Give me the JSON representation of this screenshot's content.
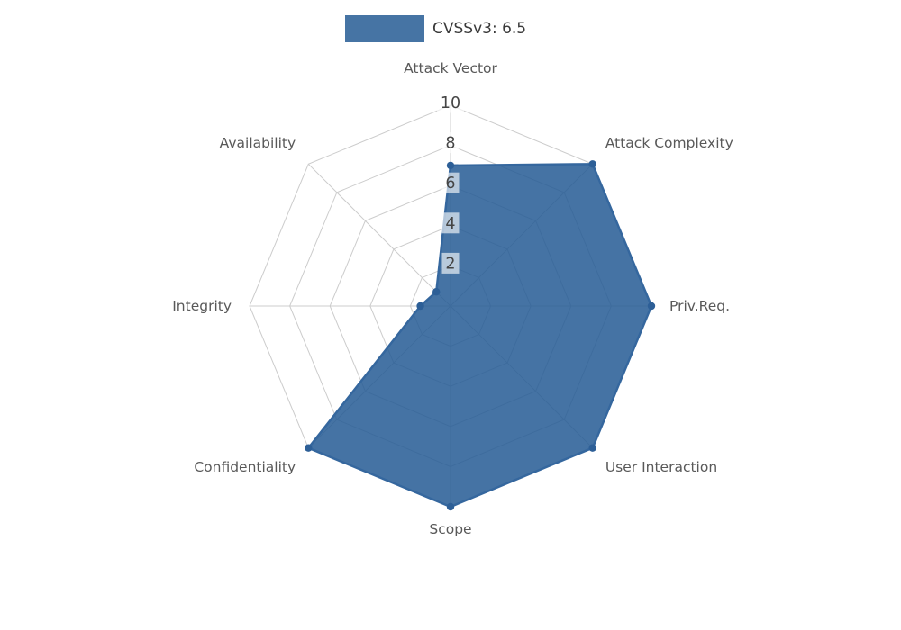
{
  "legend": {
    "label": "CVSSv3: 6.5",
    "swatch_color": "#4674a4"
  },
  "chart_data": {
    "type": "radar",
    "title": "CVSSv3: 6.5",
    "categories": [
      "Attack Vector",
      "Attack Complexity",
      "Priv.Req.",
      "User Interaction",
      "Scope",
      "Confidentiality",
      "Integrity",
      "Availability"
    ],
    "series": [
      {
        "name": "CVSSv3: 6.5",
        "values": [
          7,
          10,
          10,
          10,
          10,
          10,
          1.5,
          1
        ]
      }
    ],
    "ticks": [
      2,
      4,
      6,
      8,
      10
    ],
    "range": [
      0,
      10
    ],
    "grid": true,
    "legend_position": "top-center",
    "colors": {
      "fill": "#255b94",
      "fill_opacity": 0.85,
      "stroke": "#35679e",
      "point": "#2d5f97",
      "grid": "#cccccc",
      "tick_label_bg": "#ffffff",
      "tick_label_color": "#454545",
      "label_color": "#595959"
    }
  }
}
